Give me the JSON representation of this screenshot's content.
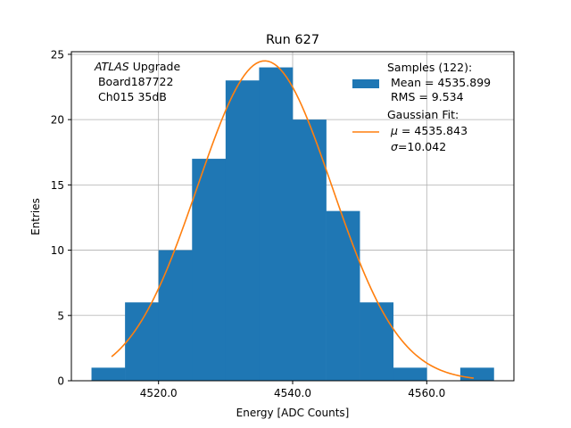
{
  "chart_data": {
    "type": "bar",
    "title": "Run 627",
    "xlabel": "Energy [ADC Counts]",
    "ylabel": "Entries",
    "xlim": [
      4507,
      4573
    ],
    "ylim": [
      0,
      25.2
    ],
    "xticks": [
      4520,
      4540,
      4560
    ],
    "xtick_labels": [
      "4520.0",
      "4540.0",
      "4560.0"
    ],
    "yticks": [
      0,
      5,
      10,
      15,
      20,
      25
    ],
    "ytick_labels": [
      "0",
      "5",
      "10",
      "15",
      "20",
      "25"
    ],
    "grid": true,
    "legend_position": "top-right",
    "histogram": {
      "name": "Samples (122):",
      "bin_edges": [
        4510,
        4515,
        4520,
        4525,
        4530,
        4535,
        4540,
        4545,
        4550,
        4555,
        4560,
        4565,
        4570
      ],
      "counts": [
        1,
        6,
        10,
        17,
        23,
        24,
        20,
        13,
        6,
        1,
        0,
        1
      ],
      "color": "#1f77b4"
    },
    "fit": {
      "name": "Gaussian Fit:",
      "mu": 4535.843,
      "sigma": 10.042,
      "amplitude": 24.5,
      "x_range": [
        4513,
        4567
      ],
      "color": "#ff7f0e"
    },
    "legend": {
      "samples_title": "Samples (122):",
      "samples_mean": " Mean = 4535.899",
      "samples_rms": " RMS = 9.534",
      "fit_title": "Gaussian Fit:",
      "fit_mu_symbol": "μ",
      "fit_mu_value": " = 4535.843",
      "fit_sigma_symbol": "σ",
      "fit_sigma_value": "=10.042"
    },
    "annotation": {
      "experiment": "ATLAS",
      "line1_rest": " Upgrade",
      "line2": " Board187722",
      "line3": " Ch015 35dB"
    }
  }
}
